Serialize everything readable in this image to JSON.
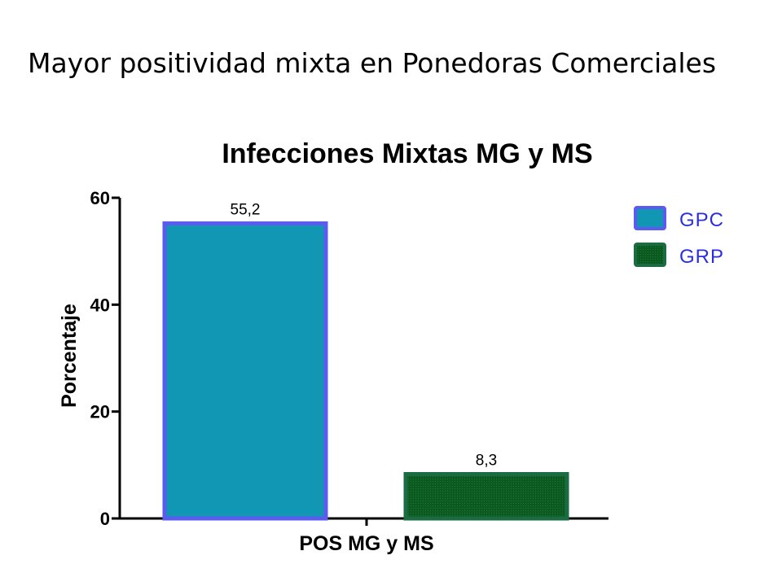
{
  "slide": {
    "title": "Mayor positividad mixta en Ponedoras Comerciales"
  },
  "chart_data": {
    "type": "bar",
    "title": "Infecciones Mixtas MG y MS",
    "xlabel": "",
    "ylabel": "Porcentaje",
    "categories": [
      "POS MG y MS"
    ],
    "series": [
      {
        "name": "GPC",
        "values": [
          55.2
        ],
        "data_labels": [
          "55,2"
        ],
        "fill": "#1197b3",
        "stroke": "#5b5bf0"
      },
      {
        "name": "GRP",
        "values": [
          8.3
        ],
        "data_labels": [
          "8,3"
        ],
        "fill": "#0c5a22",
        "stroke": "#1b6b43"
      }
    ],
    "ylim": [
      0,
      60
    ],
    "yticks": [
      0,
      20,
      40,
      60
    ],
    "ytick_labels": [
      "0",
      "20",
      "40",
      "60"
    ],
    "grid": false,
    "legend": "top-right"
  }
}
